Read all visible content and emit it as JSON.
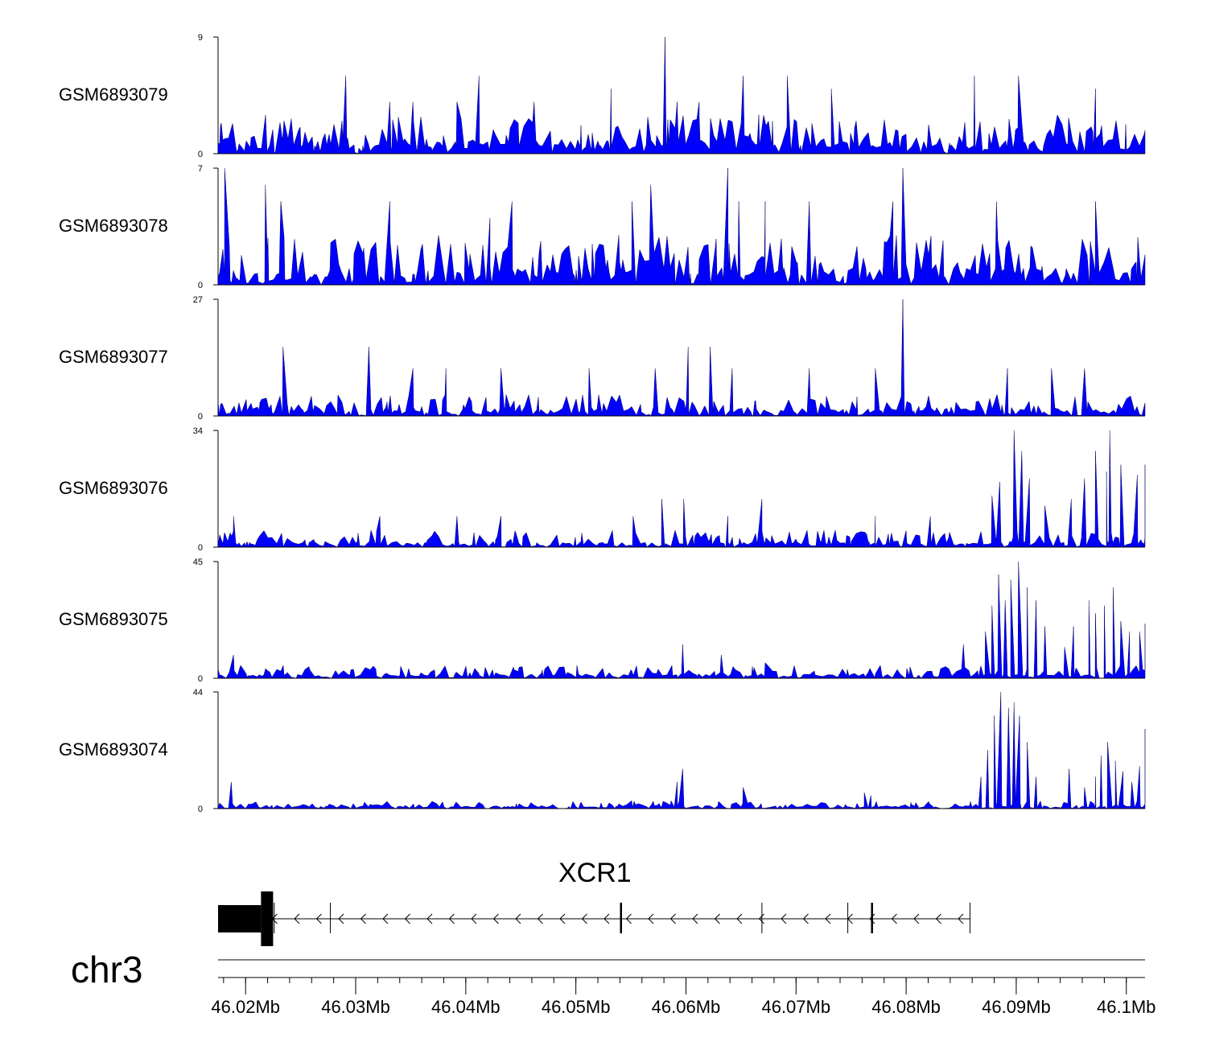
{
  "chart_data": {
    "type": "area",
    "title": "",
    "chromosome": "chr3",
    "region_mb": [
      46.0175,
      46.1017
    ],
    "series_color": "#0000ff",
    "tracks": [
      {
        "name": "GSM6893079",
        "ymax": 9,
        "ymax_label": "9",
        "ymin_label": "0",
        "peaks": [
          [
            46.0581,
            9
          ],
          [
            46.0291,
            6
          ],
          [
            46.0331,
            4
          ],
          [
            46.0412,
            6
          ],
          [
            46.0462,
            4
          ],
          [
            46.0532,
            5
          ],
          [
            46.0612,
            4
          ],
          [
            46.0652,
            6
          ],
          [
            46.0692,
            6
          ],
          [
            46.0732,
            5
          ],
          [
            46.0862,
            6
          ],
          [
            46.0902,
            6
          ],
          [
            46.0972,
            5
          ],
          [
            46.0352,
            4
          ],
          [
            46.0592,
            4
          ],
          [
            46.0392,
            4
          ]
        ],
        "noise": [
          0,
          3
        ],
        "seed": 11
      },
      {
        "name": "GSM6893078",
        "ymax": 7,
        "ymax_label": "7",
        "ymin_label": "0",
        "peaks": [
          [
            46.0181,
            7
          ],
          [
            46.0218,
            6
          ],
          [
            46.0232,
            5
          ],
          [
            46.0331,
            5
          ],
          [
            46.0442,
            5
          ],
          [
            46.0551,
            5
          ],
          [
            46.0638,
            7
          ],
          [
            46.0568,
            6
          ],
          [
            46.0648,
            5
          ],
          [
            46.0672,
            5
          ],
          [
            46.0712,
            5
          ],
          [
            46.0797,
            7
          ],
          [
            46.0788,
            5
          ],
          [
            46.0882,
            5
          ],
          [
            46.0972,
            5
          ],
          [
            46.0422,
            4
          ]
        ],
        "noise": [
          0,
          3
        ],
        "seed": 23
      },
      {
        "name": "GSM6893077",
        "ymax": 27,
        "ymax_label": "27",
        "ymin_label": "0",
        "peaks": [
          [
            46.0797,
            27
          ],
          [
            46.0234,
            16
          ],
          [
            46.0312,
            16
          ],
          [
            46.0602,
            16
          ],
          [
            46.0622,
            16
          ],
          [
            46.0772,
            11
          ],
          [
            46.0712,
            11
          ],
          [
            46.0572,
            11
          ],
          [
            46.0432,
            11
          ],
          [
            46.0382,
            11
          ],
          [
            46.0512,
            11
          ],
          [
            46.0642,
            11
          ],
          [
            46.0892,
            11
          ],
          [
            46.0932,
            11
          ],
          [
            46.0962,
            11
          ],
          [
            46.0352,
            11
          ]
        ],
        "noise": [
          0,
          5
        ],
        "seed": 37
      },
      {
        "name": "GSM6893076",
        "ymax": 34,
        "ymax_label": "34",
        "ymin_label": "0",
        "peaks": [
          [
            46.0898,
            34
          ],
          [
            46.0905,
            28
          ],
          [
            46.0912,
            20
          ],
          [
            46.0885,
            19
          ],
          [
            46.0878,
            15
          ],
          [
            46.0926,
            12
          ],
          [
            46.0972,
            28
          ],
          [
            46.0985,
            34
          ],
          [
            46.0995,
            24
          ],
          [
            46.101,
            21
          ],
          [
            46.1017,
            24
          ],
          [
            46.0962,
            20
          ],
          [
            46.095,
            14
          ],
          [
            46.0982,
            22
          ],
          [
            46.0578,
            14
          ],
          [
            46.0598,
            14
          ],
          [
            46.0669,
            14
          ],
          [
            46.0638,
            9
          ],
          [
            46.0322,
            9
          ],
          [
            46.0392,
            9
          ],
          [
            46.0432,
            9
          ],
          [
            46.0552,
            9
          ],
          [
            46.0772,
            9
          ],
          [
            46.0822,
            9
          ],
          [
            46.0189,
            9
          ]
        ],
        "noise": [
          0,
          5
        ],
        "seed": 53
      },
      {
        "name": "GSM6893075",
        "ymax": 45,
        "ymax_label": "45",
        "ymin_label": "0",
        "peaks": [
          [
            46.0884,
            40
          ],
          [
            46.0895,
            38
          ],
          [
            46.0902,
            45
          ],
          [
            46.091,
            35
          ],
          [
            46.0918,
            30
          ],
          [
            46.089,
            30
          ],
          [
            46.0878,
            28
          ],
          [
            46.0872,
            18
          ],
          [
            46.0926,
            20
          ],
          [
            46.0966,
            30
          ],
          [
            46.0972,
            25
          ],
          [
            46.0988,
            35
          ],
          [
            46.098,
            28
          ],
          [
            46.0995,
            22
          ],
          [
            46.1003,
            18
          ],
          [
            46.1017,
            21
          ],
          [
            46.1012,
            18
          ],
          [
            46.0952,
            20
          ],
          [
            46.0944,
            12
          ],
          [
            46.0852,
            13
          ],
          [
            46.0597,
            13
          ],
          [
            46.0632,
            9
          ],
          [
            46.0672,
            6
          ],
          [
            46.0189,
            9
          ]
        ],
        "noise": [
          0,
          5
        ],
        "seed": 71
      },
      {
        "name": "GSM6893074",
        "ymax": 44,
        "ymax_label": "44",
        "ymin_label": "0",
        "peaks": [
          [
            46.088,
            35
          ],
          [
            46.0886,
            44
          ],
          [
            46.0893,
            38
          ],
          [
            46.0898,
            40
          ],
          [
            46.0903,
            35
          ],
          [
            46.091,
            25
          ],
          [
            46.0874,
            22
          ],
          [
            46.0868,
            12
          ],
          [
            46.0918,
            12
          ],
          [
            46.0983,
            25
          ],
          [
            46.0977,
            20
          ],
          [
            46.099,
            18
          ],
          [
            46.0997,
            14
          ],
          [
            46.0972,
            12
          ],
          [
            46.0962,
            8
          ],
          [
            46.0948,
            15
          ],
          [
            46.1017,
            30
          ],
          [
            46.1012,
            16
          ],
          [
            46.1005,
            10
          ],
          [
            46.0597,
            15
          ],
          [
            46.0592,
            10
          ],
          [
            46.0187,
            10
          ],
          [
            46.0652,
            8
          ],
          [
            46.0768,
            5
          ],
          [
            46.0762,
            6
          ]
        ],
        "noise": [
          0,
          3
        ],
        "seed": 89
      }
    ],
    "gene": {
      "name": "XCR1",
      "strand": "-",
      "exons": [
        [
          46.0175,
          46.0214
        ],
        [
          46.0214,
          46.0225
        ],
        [
          46.0276,
          46.0277
        ],
        [
          46.054,
          46.0541
        ],
        [
          46.0668,
          46.0669
        ],
        [
          46.0746,
          46.0747
        ],
        [
          46.0768,
          46.0769
        ],
        [
          46.0858,
          46.0859
        ]
      ],
      "span": [
        46.0175,
        46.0858
      ]
    },
    "xaxis": {
      "ticks_mb": [
        46.02,
        46.03,
        46.04,
        46.05,
        46.06,
        46.07,
        46.08,
        46.09,
        46.1
      ],
      "tick_labels": [
        "46.02Mb",
        "46.03Mb",
        "46.04Mb",
        "46.05Mb",
        "46.06Mb",
        "46.07Mb",
        "46.08Mb",
        "46.09Mb",
        "46.1Mb"
      ],
      "minor_step_mb": 0.002
    }
  }
}
